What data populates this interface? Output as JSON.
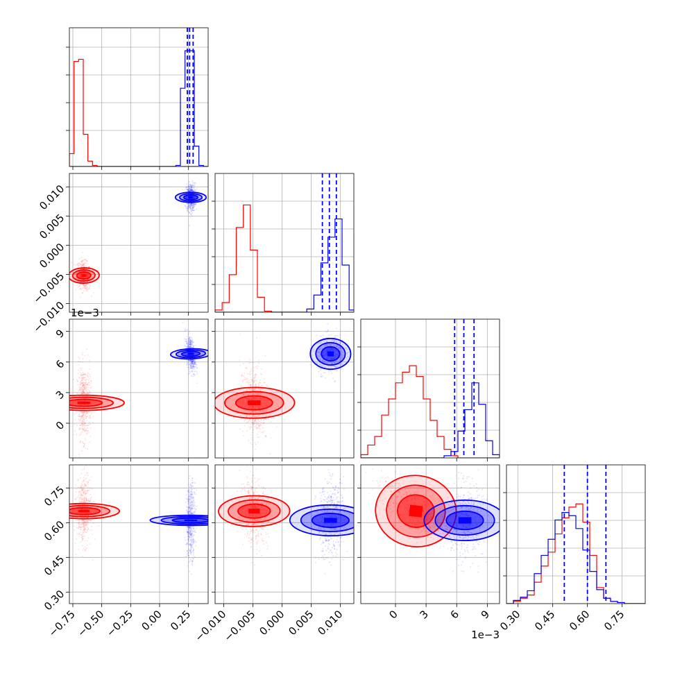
{
  "chart_data": {
    "type": "corner",
    "colors": {
      "series_a": "#ff0000",
      "series_b": "#0000ff",
      "grid": "#b0b0b0"
    },
    "grid": true,
    "series": [
      {
        "color": "#ff0000"
      },
      {
        "color": "#0000ff"
      }
    ],
    "dims": [
      {
        "range": [
          -0.78,
          0.42
        ],
        "ticks": [
          -0.75,
          -0.5,
          -0.25,
          0.0,
          0.25
        ],
        "tick_labels": [
          "−0.75",
          "−0.50",
          "−0.25",
          "0.00",
          "0.25"
        ],
        "offset": ""
      },
      {
        "range": [
          -0.0115,
          0.0123
        ],
        "ticks": [
          -0.01,
          -0.005,
          0.0,
          0.005,
          0.01
        ],
        "tick_labels": [
          "−0.010",
          "−0.005",
          "0.000",
          "0.005",
          "0.010"
        ],
        "offset": ""
      },
      {
        "range": [
          -0.0034,
          0.0102
        ],
        "ticks": [
          0.0,
          0.003,
          0.006,
          0.009
        ],
        "tick_labels": [
          "0",
          "3",
          "6",
          "9"
        ],
        "offset": "1e−3"
      },
      {
        "range": [
          0.25,
          0.85
        ],
        "ticks": [
          0.3,
          0.45,
          0.6,
          0.75
        ],
        "tick_labels": [
          "0.30",
          "0.45",
          "0.60",
          "0.75"
        ],
        "offset": ""
      }
    ],
    "marginals": [
      {
        "dim": 0,
        "hist": [
          {
            "color": "#ff0000",
            "x0": -0.78,
            "bin": 0.04,
            "counts": [
              0.12,
              0.98,
              1.0,
              0.3,
              0.05,
              0.01,
              0,
              0,
              0,
              0,
              0,
              0,
              0,
              0,
              0,
              0,
              0,
              0,
              0,
              0,
              0,
              0,
              0,
              0,
              0,
              0,
              0,
              0,
              0,
              0
            ]
          },
          {
            "color": "#0000ff",
            "x0": -0.78,
            "bin": 0.04,
            "counts": [
              0,
              0,
              0,
              0,
              0,
              0,
              0,
              0,
              0,
              0,
              0,
              0,
              0,
              0,
              0,
              0,
              0,
              0,
              0,
              0,
              0,
              0,
              0,
              0.01,
              0.73,
              1.08,
              1.08,
              0.19,
              0.01,
              0
            ]
          }
        ],
        "quantiles": [
          0.24,
          0.26,
          0.29
        ]
      },
      {
        "dim": 1,
        "hist": [
          {
            "color": "#ff0000",
            "x0": -0.0115,
            "bin": 0.00121,
            "counts": [
              0.02,
              0.09,
              0.35,
              0.79,
              1.0,
              0.58,
              0.14,
              0.01,
              0,
              0,
              0,
              0,
              0,
              0,
              0,
              0,
              0,
              0,
              0,
              0
            ]
          },
          {
            "color": "#0000ff",
            "x0": -0.0115,
            "bin": 0.00121,
            "counts": [
              0,
              0,
              0,
              0,
              0,
              0,
              0,
              0,
              0,
              0,
              0,
              0,
              0,
              0.03,
              0.16,
              0.46,
              0.7,
              0.87,
              0.44,
              0.02
            ]
          }
        ],
        "quantiles": [
          0.0069,
          0.0081,
          0.0093
        ]
      },
      {
        "dim": 2,
        "hist": [
          {
            "color": "#ff0000",
            "x0": -0.0034,
            "bin": 0.00068,
            "counts": [
              0.03,
              0.12,
              0.2,
              0.4,
              0.55,
              0.7,
              0.8,
              0.86,
              0.76,
              0.55,
              0.35,
              0.2,
              0.08,
              0.02,
              0.0,
              0.0,
              0.0,
              0.0,
              0.0,
              0.0
            ]
          },
          {
            "color": "#0000ff",
            "x0": -0.0034,
            "bin": 0.00068,
            "counts": [
              0,
              0,
              0,
              0,
              0,
              0,
              0,
              0,
              0,
              0,
              0,
              0,
              0.02,
              0.06,
              0.25,
              0.45,
              0.7,
              0.5,
              0.16,
              0.03
            ]
          }
        ],
        "quantiles": [
          0.0058,
          0.0067,
          0.0077
        ]
      },
      {
        "dim": 3,
        "hist": [
          {
            "color": "#ff0000",
            "x0": 0.25,
            "bin": 0.03,
            "counts": [
              0.0,
              0.02,
              0.05,
              0.08,
              0.2,
              0.35,
              0.48,
              0.65,
              0.8,
              0.9,
              0.93,
              0.76,
              0.45,
              0.15,
              0.05,
              0.02,
              0.01,
              0.0,
              0.0,
              0.0
            ]
          },
          {
            "color": "#0000ff",
            "x0": 0.25,
            "bin": 0.03,
            "counts": [
              0.0,
              0.03,
              0.06,
              0.12,
              0.28,
              0.45,
              0.6,
              0.78,
              0.85,
              0.82,
              0.7,
              0.5,
              0.3,
              0.13,
              0.05,
              0.02,
              0.01,
              0.0,
              0.0,
              0.0
            ]
          }
        ],
        "quantiles": [
          0.5,
          0.6,
          0.68
        ]
      }
    ],
    "joints": [
      {
        "x_dim": 0,
        "y_dim": 1,
        "clusters": [
          {
            "color": "#ff0000",
            "mx": -0.655,
            "my": -0.0052,
            "sx": 0.03,
            "sy": 0.0012,
            "rho": -0.2,
            "n": 500
          },
          {
            "color": "#0000ff",
            "mx": 0.27,
            "my": 0.0082,
            "sx": 0.02,
            "sy": 0.0012,
            "rho": 0.0,
            "n": 500
          }
        ]
      },
      {
        "x_dim": 0,
        "y_dim": 2,
        "clusters": [
          {
            "color": "#ff0000",
            "mx": -0.655,
            "my": 0.002,
            "sx": 0.03,
            "sy": 0.0018,
            "rho": 0.0,
            "n": 500
          },
          {
            "color": "#0000ff",
            "mx": 0.27,
            "my": 0.0068,
            "sx": 0.02,
            "sy": 0.0009,
            "rho": -0.45,
            "n": 500
          }
        ]
      },
      {
        "x_dim": 1,
        "y_dim": 2,
        "clusters": [
          {
            "color": "#ff0000",
            "mx": -0.0048,
            "my": 0.002,
            "sx": 0.0012,
            "sy": 0.0018,
            "rho": -0.1,
            "n": 500
          },
          {
            "color": "#0000ff",
            "mx": 0.0083,
            "my": 0.0068,
            "sx": 0.0012,
            "sy": 0.0009,
            "rho": 0.1,
            "n": 500
          }
        ]
      },
      {
        "x_dim": 0,
        "y_dim": 3,
        "clusters": [
          {
            "color": "#ff0000",
            "mx": -0.655,
            "my": 0.65,
            "sx": 0.03,
            "sy": 0.07,
            "rho": 0.0,
            "n": 500
          },
          {
            "color": "#0000ff",
            "mx": 0.27,
            "my": 0.61,
            "sx": 0.02,
            "sy": 0.08,
            "rho": 0.1,
            "n": 500
          }
        ]
      },
      {
        "x_dim": 1,
        "y_dim": 3,
        "clusters": [
          {
            "color": "#ff0000",
            "mx": -0.0048,
            "my": 0.65,
            "sx": 0.0012,
            "sy": 0.07,
            "rho": -0.2,
            "n": 500
          },
          {
            "color": "#0000ff",
            "mx": 0.0083,
            "my": 0.61,
            "sx": 0.0012,
            "sy": 0.08,
            "rho": 0.15,
            "n": 500
          }
        ]
      },
      {
        "x_dim": 2,
        "y_dim": 3,
        "clusters": [
          {
            "color": "#ff0000",
            "mx": 0.002,
            "my": 0.65,
            "sx": 0.0018,
            "sy": 0.07,
            "rho": -0.75,
            "n": 500
          },
          {
            "color": "#0000ff",
            "mx": 0.0068,
            "my": 0.61,
            "sx": 0.0009,
            "sy": 0.08,
            "rho": 0.0,
            "n": 500
          }
        ]
      }
    ]
  }
}
